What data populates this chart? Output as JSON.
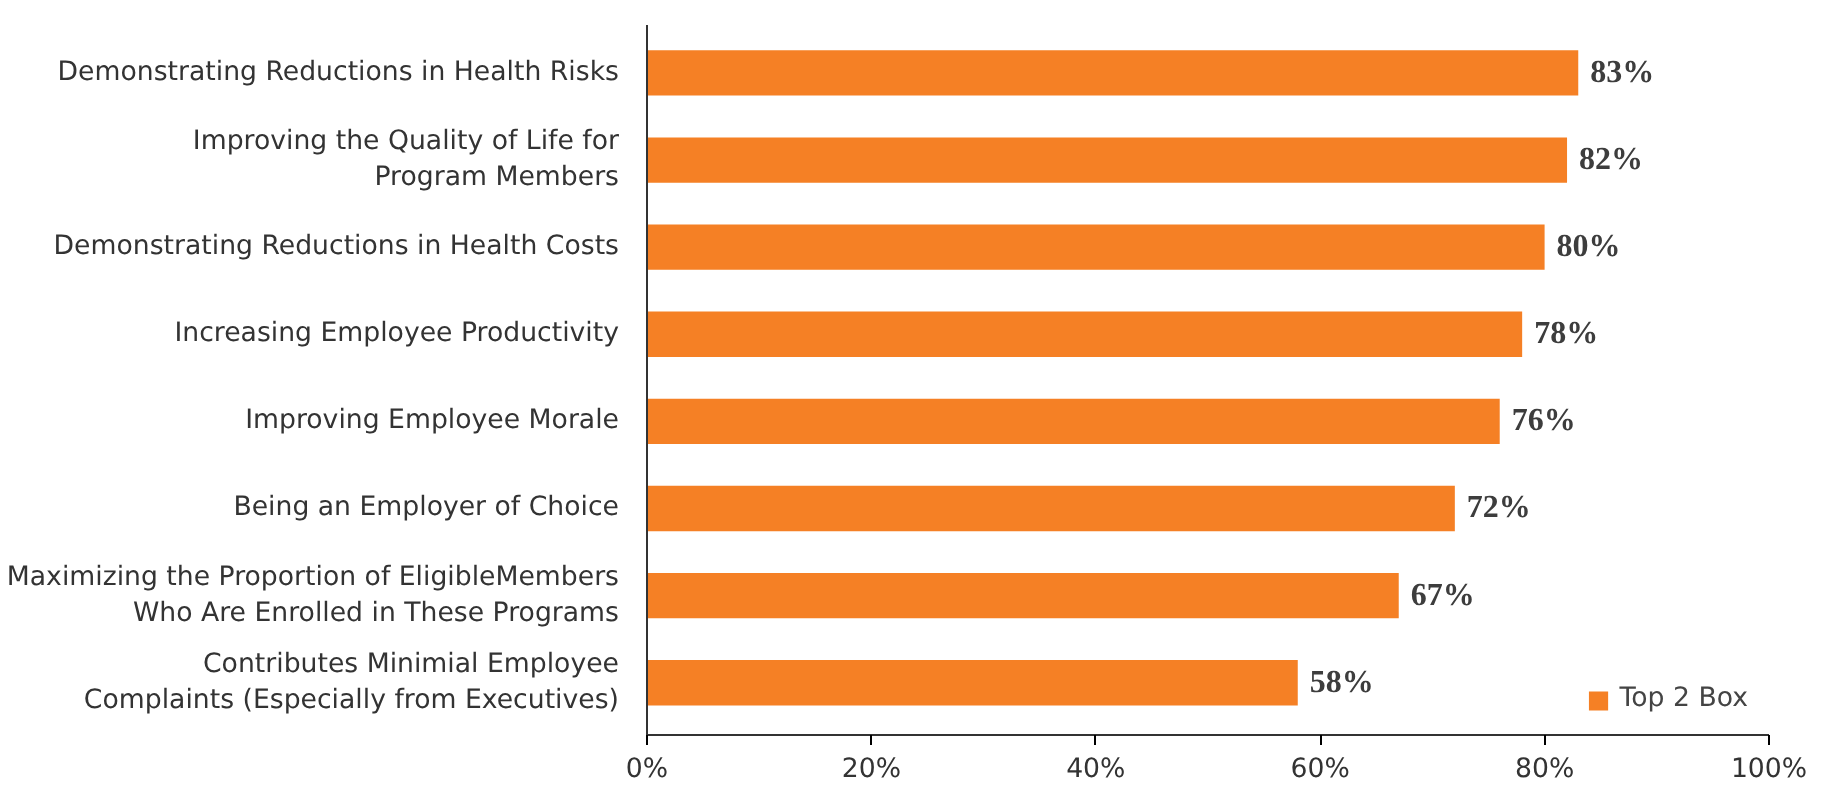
{
  "chart_data": {
    "type": "bar",
    "orientation": "horizontal",
    "categories": [
      "Demonstrating Reductions in Health Risks",
      "Improving the Quality of Life for\nProgram Members",
      "Demonstrating Reductions in Health Costs",
      "Increasing Employee Productivity",
      "Improving Employee Morale",
      "Being an Employer of Choice",
      "Maximizing the Proportion of EligibleMembers\nWho Are Enrolled in These Programs",
      "Contributes Minimial Employee\nComplaints (Especially from Executives)"
    ],
    "series": [
      {
        "name": "Top 2 Box",
        "color": "#f58025",
        "values": [
          83,
          82,
          80,
          78,
          76,
          72,
          67,
          58
        ],
        "value_labels": [
          "83%",
          "82%",
          "80%",
          "78%",
          "76%",
          "72%",
          "67%",
          "58%"
        ]
      }
    ],
    "xlim": [
      0,
      100
    ],
    "xticks": [
      {
        "value": 0,
        "label": "0%"
      },
      {
        "value": 20,
        "label": "20%"
      },
      {
        "value": 40,
        "label": "40%"
      },
      {
        "value": 60,
        "label": "60%"
      },
      {
        "value": 80,
        "label": "80%"
      },
      {
        "value": 100,
        "label": "100%"
      }
    ],
    "grid": false,
    "legend": "bottom right"
  }
}
